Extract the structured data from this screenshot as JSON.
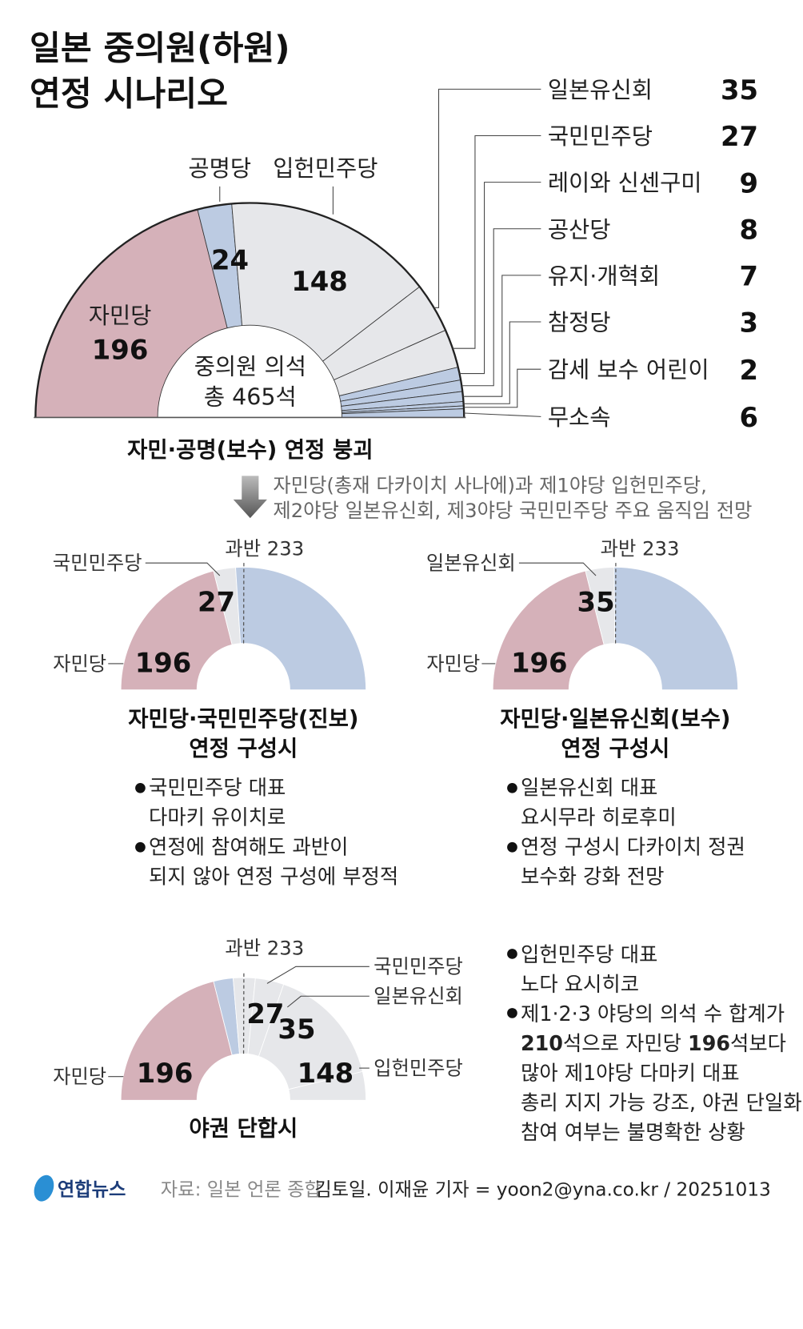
{
  "title": {
    "line1": "일본 중의원(하원)",
    "line2": "연정 시나리오"
  },
  "colors": {
    "ldp": "#d5b1b9",
    "blue": "#bccbe2",
    "grey": "#e6e7ea"
  },
  "main": {
    "center_line1": "중의원 의석",
    "center_line2": "총 465석",
    "label_komeito": "공명당",
    "label_cdp": "입헌민주당",
    "label_ldp": "자민당",
    "num_ldp": "196",
    "num_komeito": "24",
    "num_cdp": "148",
    "caption": "자민·공명(보수) 연정 붕괴",
    "note1": "자민당(총재 다카이치 사나에)과 제1야당 입헌민주당,",
    "note2": "제2야당 일본유신회, 제3야당 국민민주당 주요 움직임 전망",
    "list": [
      {
        "name": "일본유신회",
        "seats": "35"
      },
      {
        "name": "국민민주당",
        "seats": "27"
      },
      {
        "name": "레이와 신센구미",
        "seats": "9"
      },
      {
        "name": "공산당",
        "seats": "8"
      },
      {
        "name": "유지·개혁회",
        "seats": "7"
      },
      {
        "name": "참정당",
        "seats": "3"
      },
      {
        "name": "감세 보수 어린이",
        "seats": "2"
      },
      {
        "name": "무소속",
        "seats": "6"
      }
    ]
  },
  "scenario1": {
    "majority": "과반 233",
    "label_partner": "국민민주당",
    "label_ldp": "자민당",
    "num_partner": "27",
    "num_ldp": "196",
    "title1": "자민당·국민민주당(진보)",
    "title2": "연정 구성시",
    "bullet1_a": "국민민주당 대표",
    "bullet1_b": "다마키 유이치로",
    "bullet2_a": "연정에 참여해도 과반이",
    "bullet2_b": "되지 않아 연정 구성에 부정적"
  },
  "scenario2": {
    "majority": "과반 233",
    "label_partner": "일본유신회",
    "label_ldp": "자민당",
    "num_partner": "35",
    "num_ldp": "196",
    "title1": "자민당·일본유신회(보수)",
    "title2": "연정 구성시",
    "bullet1_a": "일본유신회 대표",
    "bullet1_b": "요시무라 히로후미",
    "bullet2_a": "연정 구성시 다카이치 정권",
    "bullet2_b": "보수화 강화 전망"
  },
  "scenario3": {
    "majority": "과반 233",
    "label_dpfp": "국민민주당",
    "label_ishin": "일본유신회",
    "label_cdp": "입헌민주당",
    "label_ldp": "자민당",
    "num_dpfp": "27",
    "num_ishin": "35",
    "num_ldp": "196",
    "num_cdp": "148",
    "title": "야권 단합시",
    "bullet1_a": "입헌민주당 대표",
    "bullet1_b": "노다 요시히코",
    "bullet2_a": "제1·2·3 야당의 의석 수 합계가",
    "bullet2_b_bold1": "210",
    "bullet2_b_mid": "석으로 자민당 ",
    "bullet2_b_bold2": "196",
    "bullet2_b_end": "석보다",
    "bullet2_c": "많아 제1야당 다마키 대표",
    "bullet2_d": "총리 지지 가능 강조, 야권 단일화",
    "bullet2_e": "참여 여부는 불명확한 상황"
  },
  "footer": {
    "logo": "연합뉴스",
    "source": "자료: 일본 언론 종합",
    "credit": "김토일. 이재윤 기자 = yoon2@yna.co.kr / 20251013"
  },
  "chart_data": [
    {
      "type": "pie",
      "shape": "semicircle-donut",
      "total": 465,
      "slices": [
        {
          "name": "자민당",
          "value": 196,
          "color": "#d5b1b9"
        },
        {
          "name": "공명당",
          "value": 24,
          "color": "#bccbe2"
        },
        {
          "name": "입헌민주당",
          "value": 148,
          "color": "#e6e7ea"
        },
        {
          "name": "일본유신회",
          "value": 35,
          "color": "#e6e7ea"
        },
        {
          "name": "국민민주당",
          "value": 27,
          "color": "#e6e7ea"
        },
        {
          "name": "레이와 신센구미",
          "value": 9,
          "color": "#bccbe2"
        },
        {
          "name": "공산당",
          "value": 8,
          "color": "#bccbe2"
        },
        {
          "name": "유지·개혁회",
          "value": 7,
          "color": "#bccbe2"
        },
        {
          "name": "참정당",
          "value": 3,
          "color": "#bccbe2"
        },
        {
          "name": "감세 보수 어린이",
          "value": 2,
          "color": "#bccbe2"
        },
        {
          "name": "무소속",
          "value": 6,
          "color": "#bccbe2"
        }
      ]
    },
    {
      "type": "pie",
      "shape": "semicircle-donut",
      "total": 465,
      "majority": 233,
      "slices": [
        {
          "name": "자민당",
          "value": 196,
          "color": "#d5b1b9"
        },
        {
          "name": "국민민주당",
          "value": 27,
          "color": "#e6e7ea"
        },
        {
          "name": "",
          "value": 242,
          "color": "#bccbe2"
        }
      ]
    },
    {
      "type": "pie",
      "shape": "semicircle-donut",
      "total": 465,
      "majority": 233,
      "slices": [
        {
          "name": "자민당",
          "value": 196,
          "color": "#d5b1b9"
        },
        {
          "name": "일본유신회",
          "value": 35,
          "color": "#e6e7ea"
        },
        {
          "name": "",
          "value": 234,
          "color": "#bccbe2"
        }
      ]
    },
    {
      "type": "pie",
      "shape": "semicircle-donut",
      "total": 465,
      "majority": 233,
      "slices": [
        {
          "name": "자민당",
          "value": 196,
          "color": "#d5b1b9"
        },
        {
          "name": "공명당",
          "value": 24,
          "color": "#bccbe2"
        },
        {
          "name": "국민민주당",
          "value": 27,
          "color": "#e6e7ea"
        },
        {
          "name": "일본유신회",
          "value": 35,
          "color": "#e6e7ea"
        },
        {
          "name": "입헌민주당",
          "value": 148,
          "color": "#e6e7ea"
        },
        {
          "name": "",
          "value": 35,
          "color": "#e6e7ea"
        }
      ]
    }
  ]
}
